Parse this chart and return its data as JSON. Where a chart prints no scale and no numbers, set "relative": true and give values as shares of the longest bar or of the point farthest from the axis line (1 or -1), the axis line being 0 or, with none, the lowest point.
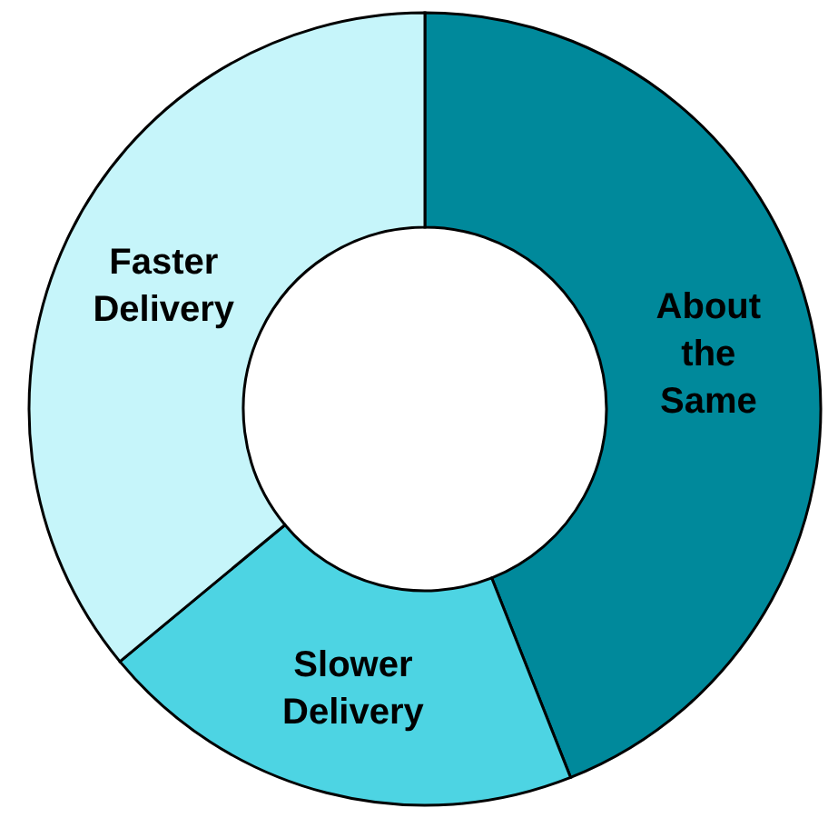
{
  "chart_data": {
    "type": "donut",
    "relative": true,
    "categories": [
      "About the Same",
      "Slower Delivery",
      "Faster Delivery"
    ],
    "values": [
      44,
      20,
      36
    ],
    "colors": [
      "#00899b",
      "#4dd4e3",
      "#c6f5fa"
    ]
  }
}
